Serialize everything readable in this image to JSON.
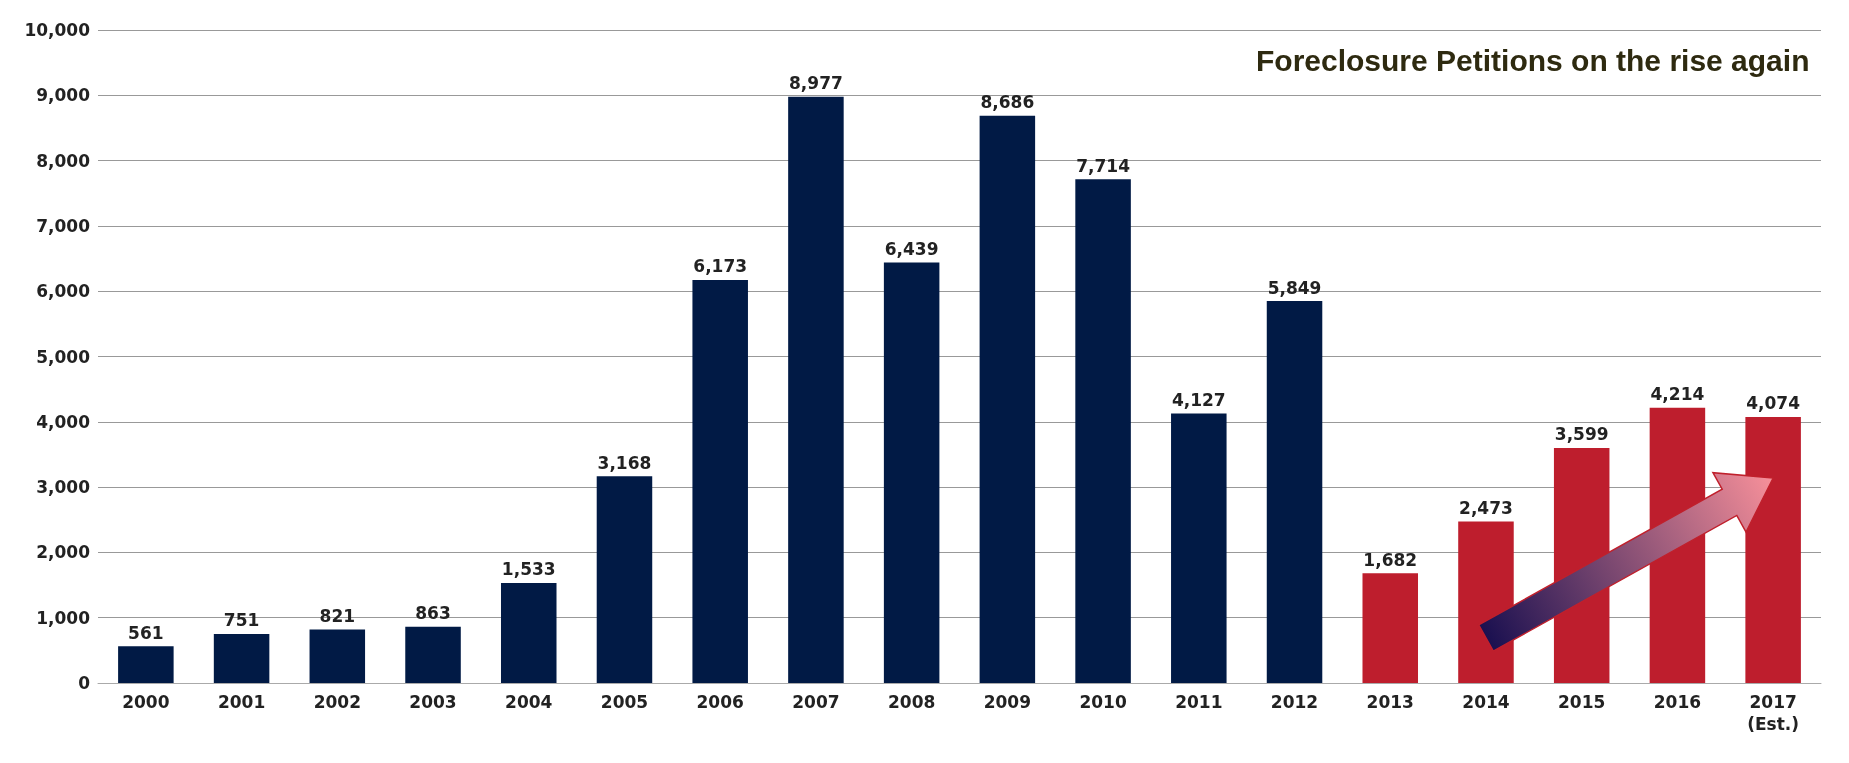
{
  "chart_data": {
    "type": "bar",
    "title": "Foreclosure Petitions on the rise again",
    "categories": [
      "2000",
      "2001",
      "2002",
      "2003",
      "2004",
      "2005",
      "2006",
      "2007",
      "2008",
      "2009",
      "2010",
      "2011",
      "2012",
      "2013",
      "2014",
      "2015",
      "2016",
      "2017\n(Est.)"
    ],
    "values": [
      561,
      751,
      821,
      863,
      1533,
      3168,
      6173,
      8977,
      6439,
      8686,
      7714,
      4127,
      5849,
      1682,
      2473,
      3599,
      4214,
      4074
    ],
    "value_labels": [
      "561",
      "751",
      "821",
      "863",
      "1,533",
      "3,168",
      "6,173",
      "8,977",
      "6,439",
      "8,686",
      "7,714",
      "4,127",
      "5,849",
      "1,682",
      "2,473",
      "3,599",
      "4,214",
      "4,074"
    ],
    "colors": [
      "#011a45",
      "#011a45",
      "#011a45",
      "#011a45",
      "#011a45",
      "#011a45",
      "#011a45",
      "#011a45",
      "#011a45",
      "#011a45",
      "#011a45",
      "#011a45",
      "#011a45",
      "#be1e2d",
      "#be1e2d",
      "#be1e2d",
      "#be1e2d",
      "#be1e2d"
    ],
    "ylim": [
      0,
      10000
    ],
    "yticks": [
      0,
      {
        "value": 1000,
        "label": "1,000"
      },
      {
        "value": 2000,
        "label": "2,000"
      },
      {
        "value": 3000,
        "label": "3,000"
      },
      {
        "value": 4000,
        "label": "4,000"
      },
      {
        "value": 5000,
        "label": "5,000"
      },
      {
        "value": 6000,
        "label": "6,000"
      },
      {
        "value": 7000,
        "label": "7,000"
      },
      {
        "value": 8000,
        "label": "8,000"
      },
      {
        "value": 9000,
        "label": "9,000"
      },
      {
        "value": 10000,
        "label": "10,000"
      }
    ],
    "grid": "y"
  }
}
